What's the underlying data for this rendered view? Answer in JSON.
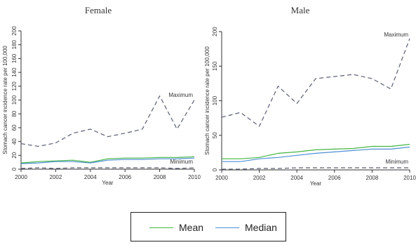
{
  "colors": {
    "mean": "#43b543",
    "median": "#4f8fd6",
    "extreme": "#5a5f72",
    "axis": "#333333"
  },
  "legend": [
    {
      "label": "Mean",
      "color": "#43b543",
      "style": "solid"
    },
    {
      "label": "Median",
      "color": "#4f8fd6",
      "style": "solid"
    }
  ],
  "chart_data": [
    {
      "type": "line",
      "title": "Female",
      "xlabel": "Year",
      "ylabel": "Stomach cancer incidence rate per 100,000",
      "xlim": [
        2000,
        2010
      ],
      "ylim": [
        0,
        200
      ],
      "xticks": [
        2000,
        2002,
        2004,
        2006,
        2008,
        2010
      ],
      "yticks": [
        0,
        20,
        40,
        60,
        80,
        100,
        120,
        140,
        160,
        180,
        200
      ],
      "grid": false,
      "x": [
        2000,
        2001,
        2002,
        2003,
        2004,
        2005,
        2006,
        2007,
        2008,
        2009,
        2010
      ],
      "series": [
        {
          "name": "Maximum",
          "style": "dashed",
          "values": [
            37,
            33,
            38,
            52,
            58,
            47,
            52,
            58,
            106,
            58,
            100
          ]
        },
        {
          "name": "Mean",
          "style": "solid",
          "values": [
            9,
            11,
            12,
            13,
            10,
            15,
            16,
            16,
            17,
            17,
            18
          ]
        },
        {
          "name": "Median",
          "style": "solid",
          "values": [
            8,
            9,
            11,
            11,
            9,
            13,
            14,
            14,
            15,
            15,
            16
          ]
        },
        {
          "name": "Minimum",
          "style": "dashed",
          "values": [
            1,
            2,
            1,
            2,
            2,
            2,
            2,
            2,
            2,
            1,
            2
          ]
        }
      ],
      "annotations": [
        {
          "text": "Maximum",
          "series": "Maximum"
        },
        {
          "text": "Minimum",
          "series": "Minimum"
        }
      ]
    },
    {
      "type": "line",
      "title": "Male",
      "xlabel": "Year",
      "ylabel": "Stomach cancer incidence rate per 100,000",
      "xlim": [
        2000,
        2010
      ],
      "ylim": [
        0,
        200
      ],
      "xticks": [
        2000,
        2002,
        2004,
        2006,
        2008,
        2010
      ],
      "yticks": [
        0,
        50,
        100,
        150,
        200
      ],
      "grid": false,
      "x": [
        2000,
        2001,
        2002,
        2003,
        2004,
        2005,
        2006,
        2007,
        2008,
        2009,
        2010
      ],
      "series": [
        {
          "name": "Maximum",
          "style": "dashed",
          "values": [
            76,
            83,
            63,
            121,
            96,
            132,
            135,
            138,
            132,
            117,
            190
          ]
        },
        {
          "name": "Mean",
          "style": "solid",
          "values": [
            16,
            16,
            18,
            24,
            26,
            29,
            30,
            31,
            34,
            34,
            37
          ]
        },
        {
          "name": "Median",
          "style": "solid",
          "values": [
            12,
            12,
            16,
            18,
            21,
            24,
            26,
            28,
            30,
            30,
            33
          ]
        },
        {
          "name": "Minimum",
          "style": "dashed",
          "values": [
            1,
            1,
            2,
            2,
            3,
            3,
            3,
            3,
            3,
            3,
            3
          ]
        }
      ],
      "annotations": [
        {
          "text": "Maximum",
          "series": "Maximum"
        },
        {
          "text": "Minimum",
          "series": "Minimum"
        }
      ]
    }
  ]
}
